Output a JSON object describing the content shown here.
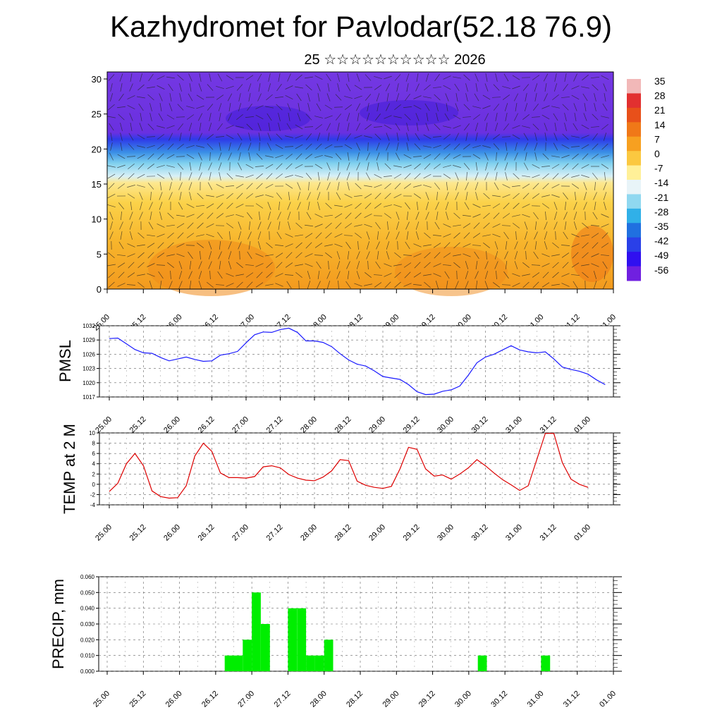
{
  "header": {
    "title": "Kazhydromet for Pavlodar(52.18 76.9)",
    "subtitle": "25 ☆☆☆☆☆☆☆☆☆☆ 2026"
  },
  "time_ticks": [
    "25.00",
    "25.12",
    "26.00",
    "26.12",
    "27.00",
    "27.12",
    "28.00",
    "28.12",
    "29.00",
    "29.12",
    "30.00",
    "30.12",
    "31.00",
    "31.12",
    "01.00"
  ],
  "chart_data": [
    {
      "id": "cross_section",
      "type": "heatmap",
      "title": "Kazhydromet for Pavlodar(52.18 76.9)",
      "ylabel": "",
      "ylim": [
        0,
        30
      ],
      "yticks": [
        0,
        5,
        10,
        15,
        20,
        25,
        30
      ],
      "colorbar": {
        "labels": [
          "35",
          "28",
          "21",
          "14",
          "7",
          "0",
          "-7",
          "-14",
          "-21",
          "-28",
          "-35",
          "-42",
          "-49",
          "-56"
        ],
        "colors": [
          "#f2b8b8",
          "#e23030",
          "#e8501a",
          "#f07818",
          "#f7a020",
          "#fbc840",
          "#fff098",
          "#e8f4f8",
          "#90d8f0",
          "#30b0e8",
          "#2070e0",
          "#2a40e8",
          "#3010f0",
          "#7020e0"
        ]
      },
      "layers": [
        {
          "height_range": [
            0,
            8
          ],
          "description_color": "#f5a623"
        },
        {
          "height_range": [
            8,
            15
          ],
          "description_color": "#fbd44a"
        },
        {
          "height_range": [
            15,
            18
          ],
          "description_color": "#b8e6f2"
        },
        {
          "height_range": [
            18,
            22
          ],
          "description_color": "#3f7fe8"
        },
        {
          "height_range": [
            22,
            31
          ],
          "description_color": "#6a2fe0"
        }
      ]
    },
    {
      "id": "pmsl",
      "type": "line",
      "ylabel": "PMSL",
      "ylim": [
        1017,
        1032
      ],
      "yticks": [
        1017,
        1020,
        1023,
        1026,
        1029,
        1032
      ],
      "color": "#1a1aff",
      "values": [
        1029.3,
        1029.4,
        1028.2,
        1027.0,
        1026.3,
        1026.2,
        1025.3,
        1024.6,
        1025.0,
        1025.4,
        1024.9,
        1024.5,
        1024.6,
        1025.8,
        1026.1,
        1026.6,
        1028.4,
        1030.1,
        1030.7,
        1030.6,
        1031.2,
        1031.5,
        1030.6,
        1028.8,
        1028.8,
        1028.5,
        1027.6,
        1026.1,
        1024.8,
        1023.9,
        1023.5,
        1022.5,
        1021.3,
        1021.0,
        1020.7,
        1019.6,
        1018.1,
        1017.5,
        1017.6,
        1018.2,
        1018.5,
        1019.3,
        1021.6,
        1024.2,
        1025.4,
        1026.0,
        1026.9,
        1027.8,
        1026.9,
        1026.5,
        1026.3,
        1026.5,
        1025.0,
        1023.3,
        1022.8,
        1022.4,
        1021.8,
        1020.6,
        1019.6
      ],
      "x_start": 0,
      "x_step": 3
    },
    {
      "id": "temp2m",
      "type": "line",
      "ylabel": "TEMP at 2 M",
      "ylim": [
        -4,
        10
      ],
      "yticks": [
        -4,
        -2,
        0,
        2,
        4,
        6,
        8,
        10
      ],
      "color": "#dd0000",
      "values": [
        -1.4,
        0.2,
        4.0,
        6.0,
        3.6,
        -1.3,
        -2.4,
        -2.7,
        -2.6,
        -0.3,
        5.5,
        8.0,
        6.4,
        2.2,
        1.3,
        1.3,
        1.2,
        1.5,
        3.4,
        3.6,
        3.2,
        1.9,
        1.2,
        0.8,
        0.7,
        1.4,
        2.6,
        4.8,
        4.6,
        0.6,
        -0.2,
        -0.6,
        -0.8,
        -0.4,
        3.0,
        7.2,
        6.8,
        3.0,
        1.6,
        1.8,
        1.0,
        2.0,
        3.2,
        4.8,
        3.6,
        2.2,
        0.9,
        -0.1,
        -1.2,
        -0.3,
        4.8,
        9.9,
        9.9,
        4.2,
        1.0,
        0.0,
        -0.6
      ],
      "x_start": 0,
      "x_step": 3
    },
    {
      "id": "precip",
      "type": "bar",
      "ylabel": "PRECIP, mm",
      "ylim": [
        0,
        0.06
      ],
      "ytick_labels": [
        "0.000",
        "0.010",
        "0.020",
        "0.030",
        "0.040",
        "0.050",
        "0.060"
      ],
      "color": "#00ee00",
      "bars": [
        {
          "t": 39,
          "value": 0.01
        },
        {
          "t": 42,
          "value": 0.01
        },
        {
          "t": 45,
          "value": 0.02
        },
        {
          "t": 48,
          "value": 0.05
        },
        {
          "t": 51,
          "value": 0.03
        },
        {
          "t": 60,
          "value": 0.04
        },
        {
          "t": 63,
          "value": 0.04
        },
        {
          "t": 66,
          "value": 0.01
        },
        {
          "t": 69,
          "value": 0.01
        },
        {
          "t": 72,
          "value": 0.02
        },
        {
          "t": 123,
          "value": 0.01
        },
        {
          "t": 144,
          "value": 0.01
        }
      ]
    }
  ]
}
